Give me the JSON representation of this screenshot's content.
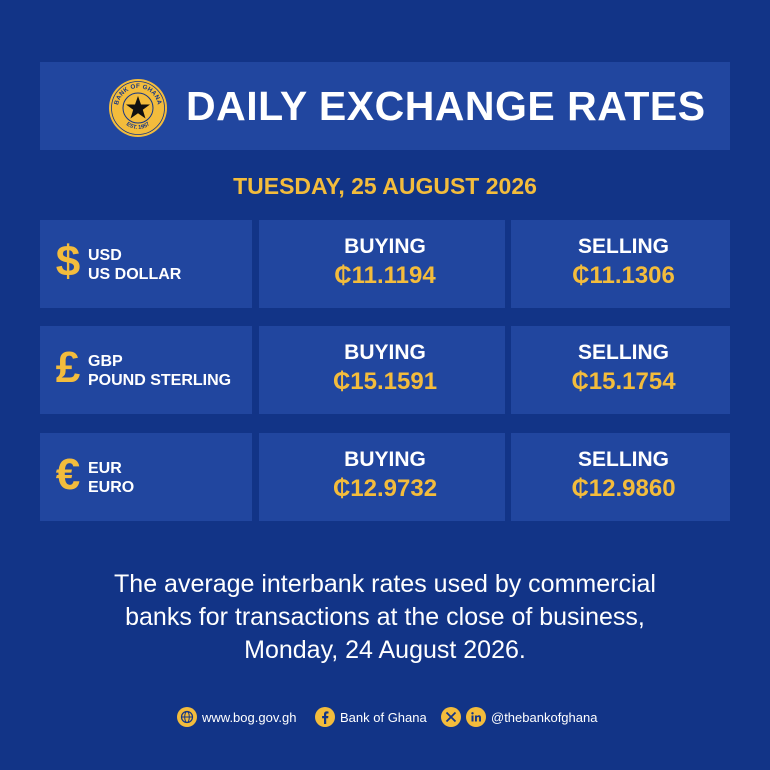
{
  "header": {
    "title": "DAILY EXCHANGE RATES",
    "seal_top_text": "BANK OF GHANA",
    "seal_bottom_text": "EST. 1957"
  },
  "date": "TUESDAY, 25 AUGUST 2026",
  "rates": [
    {
      "symbol": "$",
      "code": "USD",
      "name": "US DOLLAR",
      "buying_label": "BUYING",
      "buying": "₵11.1194",
      "selling_label": "SELLING",
      "selling": "₵11.1306"
    },
    {
      "symbol": "£",
      "code": "GBP",
      "name": "POUND STERLING",
      "buying_label": "BUYING",
      "buying": "₵15.1591",
      "selling_label": "SELLING",
      "selling": "₵15.1754"
    },
    {
      "symbol": "€",
      "code": "EUR",
      "name": "EURO",
      "buying_label": "BUYING",
      "buying": "₵12.9732",
      "selling_label": "SELLING",
      "selling": "₵12.9860"
    }
  ],
  "description": {
    "line1": "The average interbank rates used by commercial",
    "line2": "banks for transactions at the close of business,",
    "line3": "Monday, 24 August 2026."
  },
  "footer": {
    "website": "www.bog.gov.gh",
    "facebook": "Bank of Ghana",
    "social_handle": "@thebankofghana",
    "icons": [
      "globe-icon",
      "facebook-icon",
      "x-icon",
      "linkedin-icon"
    ]
  },
  "colors": {
    "background": "#123487",
    "panel": "#21469f",
    "accent": "#f3bc3c",
    "text": "#ffffff"
  }
}
